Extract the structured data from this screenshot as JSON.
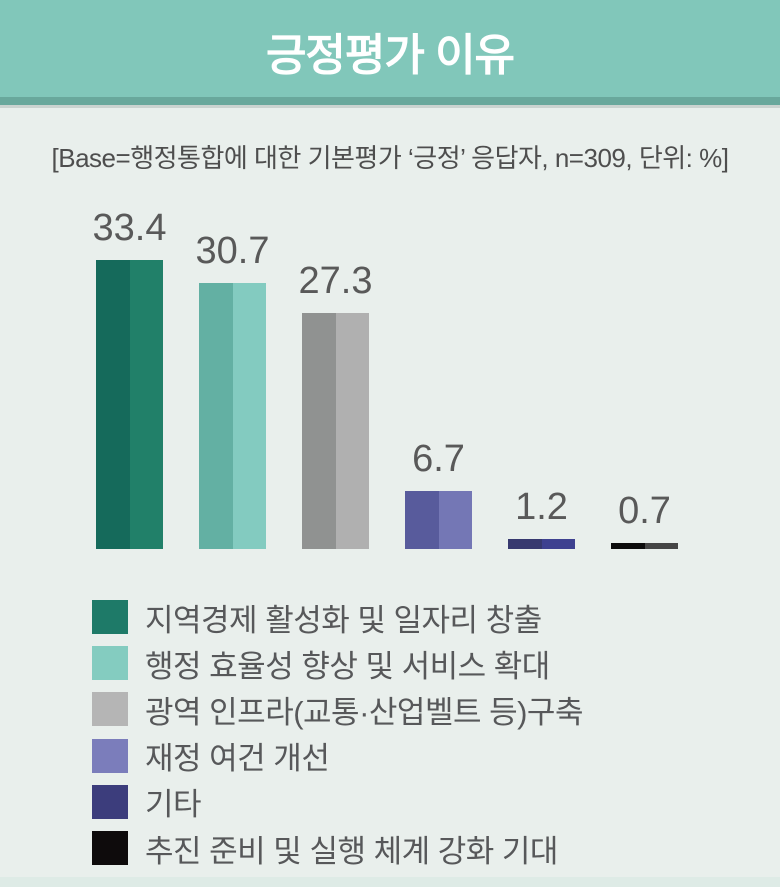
{
  "header": {
    "title": "긍정평가 이유"
  },
  "base_note": "[Base=행정통합에 대한 기본평가 ‘긍정’ 응답자, n=309, 단위: %]",
  "chart_data": {
    "type": "bar",
    "title": "긍정평가 이유",
    "base": "행정통합에 대한 기본평가 ‘긍정’ 응답자",
    "n": 309,
    "unit": "%",
    "categories": [
      "지역경제 활성화 및 일자리 창출",
      "행정 효율성 향상 및 서비스 확대",
      "광역 인프라(교통·산업벨트 등)구축",
      "재정 여건 개선",
      "기타",
      "추진 준비 및 실행 체계 강화 기대"
    ],
    "values": [
      33.4,
      30.7,
      27.3,
      6.7,
      1.2,
      0.7
    ],
    "value_labels": [
      "33.4",
      "30.7",
      "27.3",
      "6.7",
      "1.2",
      "0.7"
    ],
    "ylim": [
      0,
      35
    ],
    "grid": false,
    "legend_position": "bottom",
    "bar_colors": [
      {
        "left": "#156a5b",
        "right": "#218069"
      },
      {
        "left": "#63b0a3",
        "right": "#83cbc0"
      },
      {
        "left": "#909291",
        "right": "#b0b0b0"
      },
      {
        "left": "#585b9c",
        "right": "#7477b5"
      },
      {
        "left": "#37396f",
        "right": "#3e4190"
      },
      {
        "left": "#0c0c0c",
        "right": "#454545"
      }
    ],
    "legend_colors": [
      "#1e7a68",
      "#84ccc0",
      "#b5b5b5",
      "#7b7dbb",
      "#3c3d7c",
      "#0e0b0c"
    ]
  },
  "colors": {
    "header_bg": "#81c7ba",
    "header_band": "#69a89c",
    "header_line": "#cbd3d0",
    "page_bg": "#e9efec",
    "value_label": "#595959",
    "note_text": "#4e4e4e"
  }
}
